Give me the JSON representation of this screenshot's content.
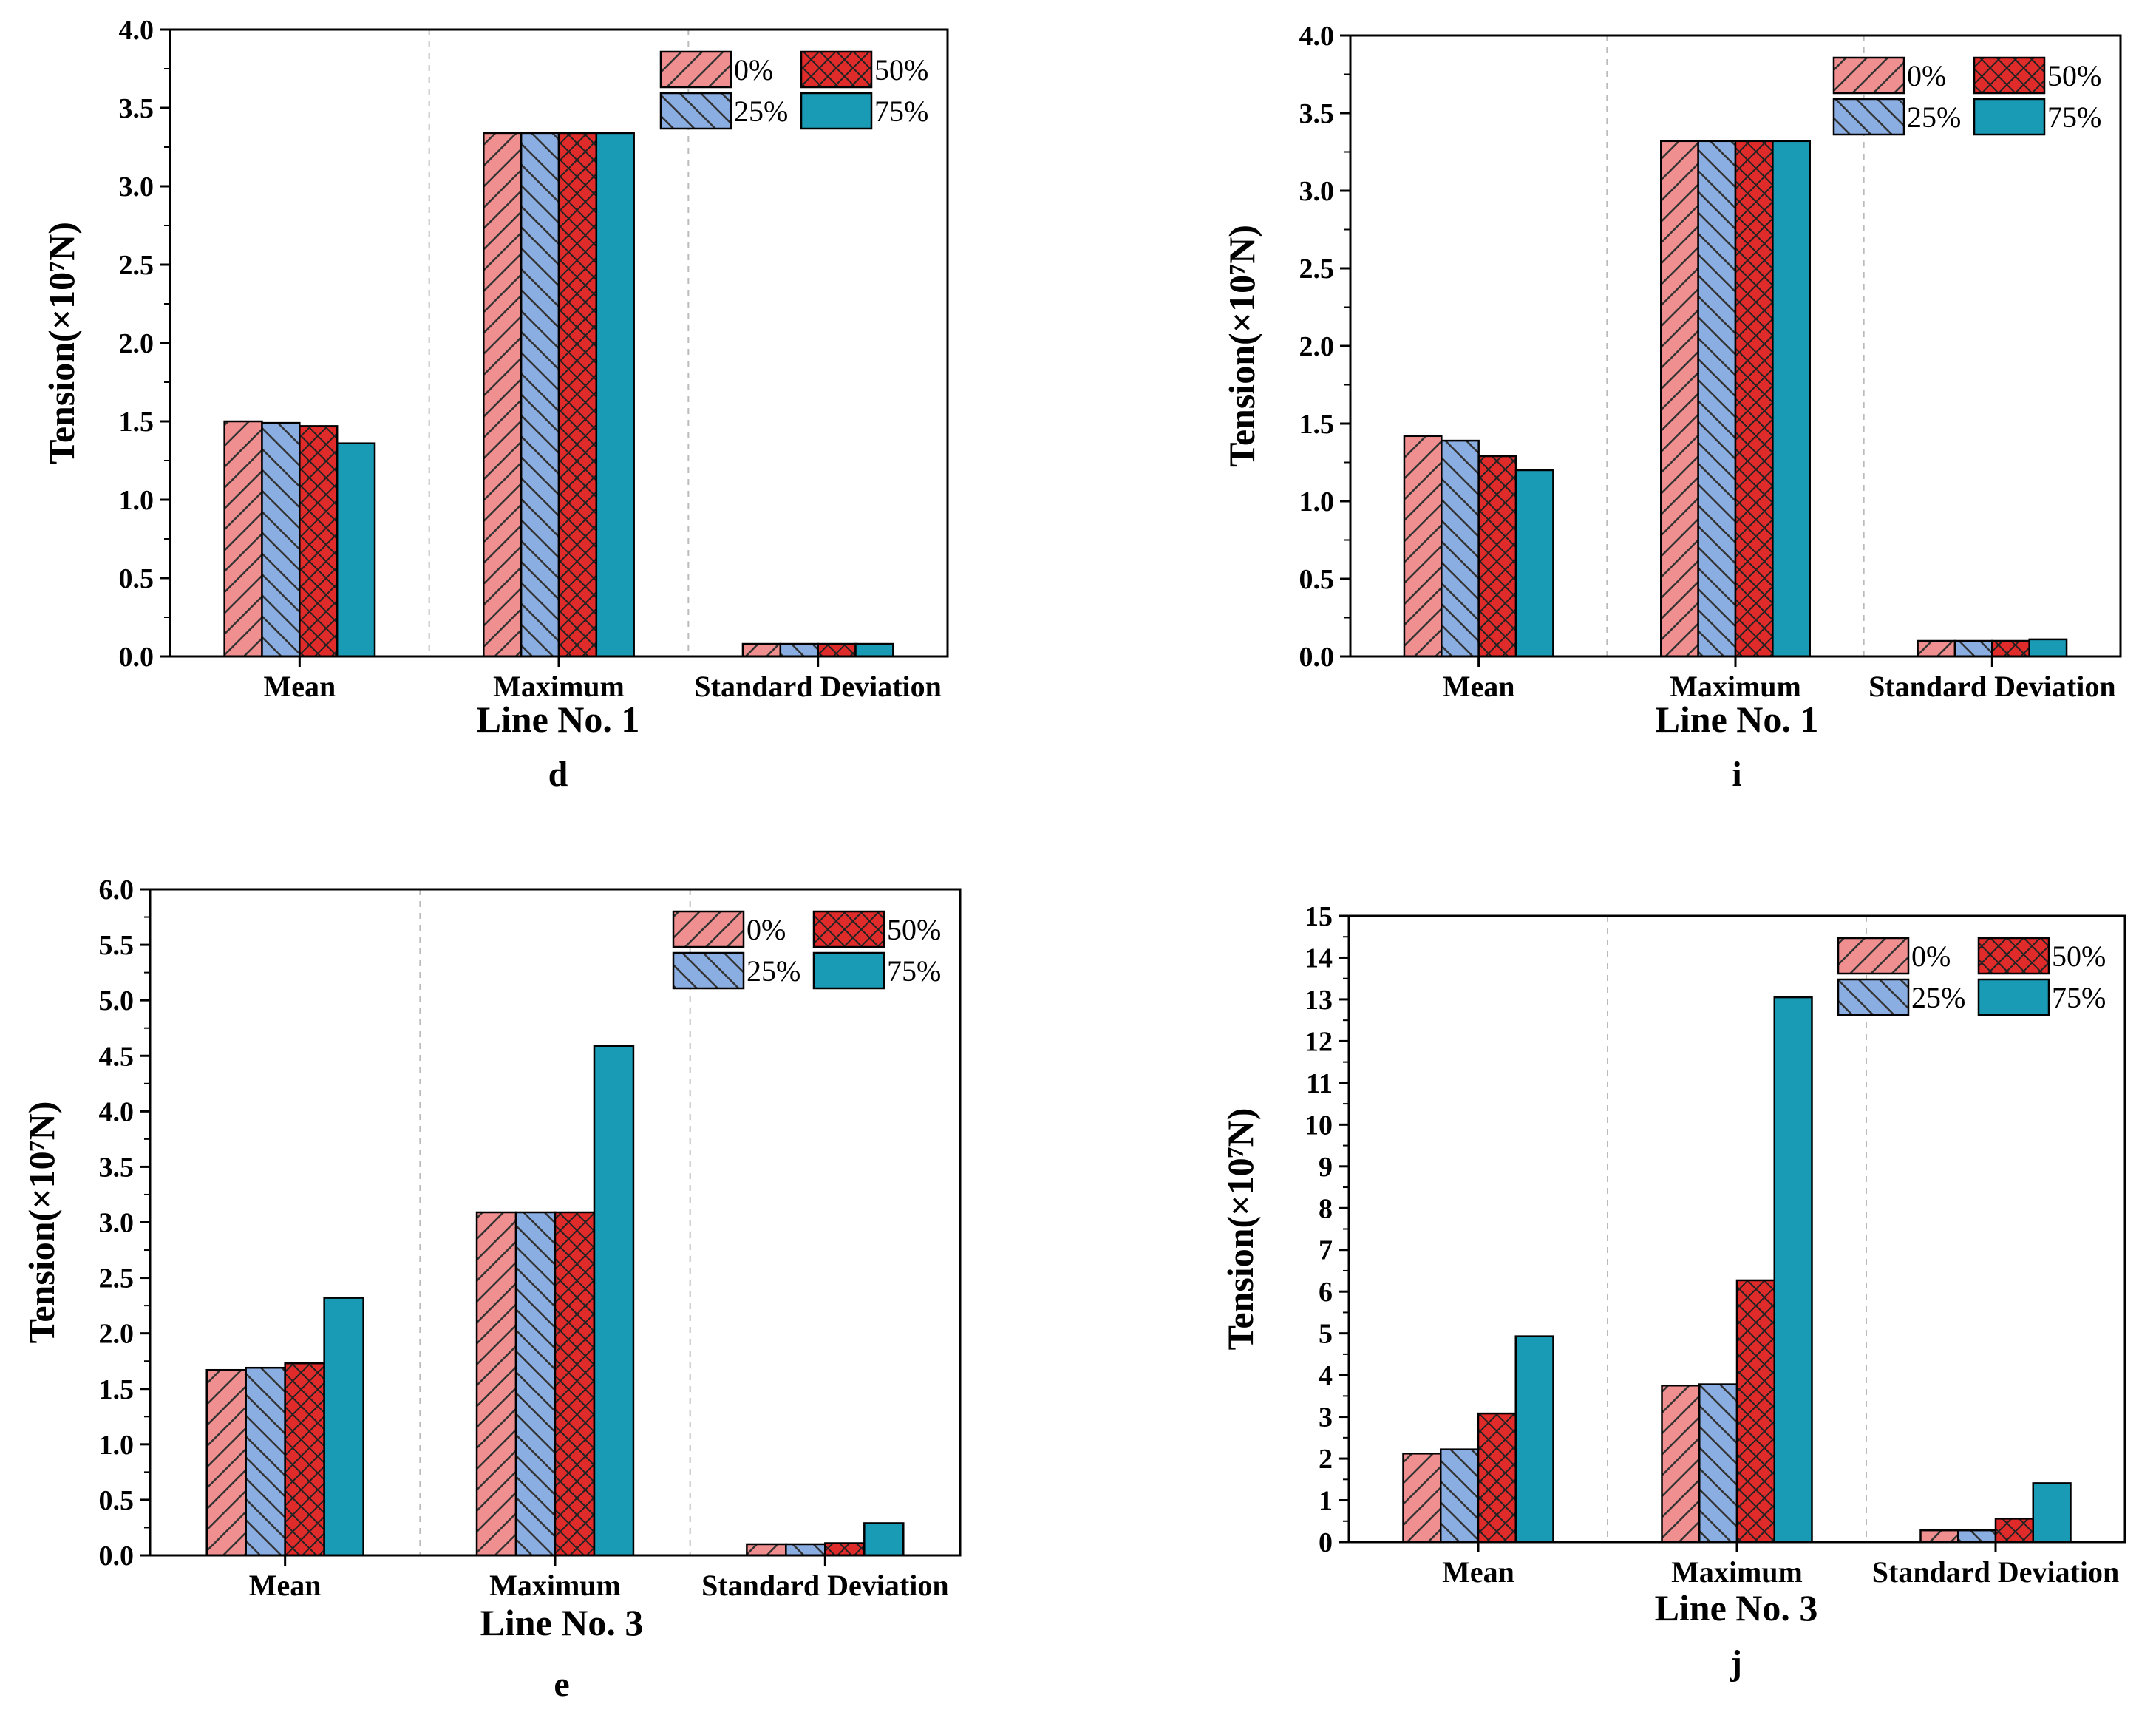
{
  "colors": {
    "0%": "#f08f8f",
    "25%": "#8aaee2",
    "50%": "#e02b2b",
    "75%": "#1a9bb5",
    "axis": "#000000",
    "separator": "#bbbbbb"
  },
  "chart_data": [
    {
      "type": "bar",
      "panel_label": "d",
      "xlabel": "Line No. 1",
      "ylabel": "Tension(×10⁷N)",
      "categories": [
        "Mean",
        "Maximum",
        "Standard Deviation"
      ],
      "ylim": [
        0,
        4.0
      ],
      "yticks": [
        "0.0",
        "0.5",
        "1.0",
        "1.5",
        "2.0",
        "2.5",
        "3.0",
        "3.5",
        "4.0"
      ],
      "legend_position": "top-right",
      "series": [
        {
          "name": "0%",
          "values": [
            1.5,
            3.34,
            0.08
          ]
        },
        {
          "name": "25%",
          "values": [
            1.49,
            3.34,
            0.08
          ]
        },
        {
          "name": "50%",
          "values": [
            1.47,
            3.34,
            0.08
          ]
        },
        {
          "name": "75%",
          "values": [
            1.36,
            3.34,
            0.08
          ]
        }
      ]
    },
    {
      "type": "bar",
      "panel_label": "i",
      "xlabel": "Line No. 1",
      "ylabel": "Tension(×10⁷N)",
      "categories": [
        "Mean",
        "Maximum",
        "Standard Deviation"
      ],
      "ylim": [
        0,
        4.0
      ],
      "yticks": [
        "0.0",
        "0.5",
        "1.0",
        "1.5",
        "2.0",
        "2.5",
        "3.0",
        "3.5",
        "4.0"
      ],
      "legend_position": "top-right",
      "series": [
        {
          "name": "0%",
          "values": [
            1.42,
            3.32,
            0.1
          ]
        },
        {
          "name": "25%",
          "values": [
            1.39,
            3.32,
            0.1
          ]
        },
        {
          "name": "50%",
          "values": [
            1.29,
            3.32,
            0.1
          ]
        },
        {
          "name": "75%",
          "values": [
            1.2,
            3.32,
            0.11
          ]
        }
      ]
    },
    {
      "type": "bar",
      "panel_label": "e",
      "xlabel": "Line No. 3",
      "ylabel": "Tension(×10⁷N)",
      "categories": [
        "Mean",
        "Maximum",
        "Standard Deviation"
      ],
      "ylim": [
        0,
        6.0
      ],
      "yticks": [
        "0.0",
        "0.5",
        "1.0",
        "1.5",
        "2.0",
        "2.5",
        "3.0",
        "3.5",
        "4.0",
        "4.5",
        "5.0",
        "5.5",
        "6.0"
      ],
      "legend_position": "top-right",
      "series": [
        {
          "name": "0%",
          "values": [
            1.67,
            3.09,
            0.1
          ]
        },
        {
          "name": "25%",
          "values": [
            1.69,
            3.09,
            0.1
          ]
        },
        {
          "name": "50%",
          "values": [
            1.73,
            3.09,
            0.11
          ]
        },
        {
          "name": "75%",
          "values": [
            2.32,
            4.59,
            0.29
          ]
        }
      ]
    },
    {
      "type": "bar",
      "panel_label": "j",
      "xlabel": "Line No. 3",
      "ylabel": "Tension(×10⁷N)",
      "categories": [
        "Mean",
        "Maximum",
        "Standard Deviation"
      ],
      "ylim": [
        0,
        15
      ],
      "yticks": [
        "0",
        "1",
        "2",
        "3",
        "4",
        "5",
        "6",
        "7",
        "8",
        "9",
        "10",
        "11",
        "12",
        "13",
        "14",
        "15"
      ],
      "legend_position": "top-right",
      "series": [
        {
          "name": "0%",
          "values": [
            2.12,
            3.75,
            0.28
          ]
        },
        {
          "name": "25%",
          "values": [
            2.22,
            3.78,
            0.28
          ]
        },
        {
          "name": "50%",
          "values": [
            3.08,
            6.27,
            0.56
          ]
        },
        {
          "name": "75%",
          "values": [
            4.93,
            13.05,
            1.41
          ]
        }
      ]
    }
  ]
}
